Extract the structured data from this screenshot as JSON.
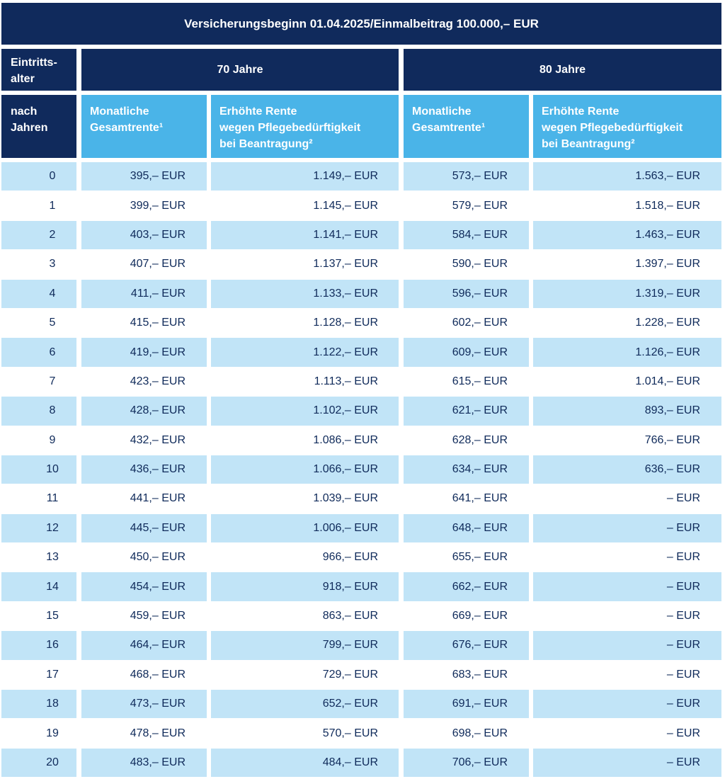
{
  "title": "Versicherungsbeginn 01.04.2025/Einmalbeitrag 100.000,– EUR",
  "header": {
    "entry_age": "Eintritts-\nalter",
    "after_years": "nach\nJahren",
    "group_70": "70 Jahre",
    "group_80": "80 Jahre",
    "monthly": "Monatliche\nGesamtrente¹",
    "care": "Erhöhte Rente\nwegen Pflegebedürftigkeit\nbei Beantragung²"
  },
  "rows": [
    {
      "years": "0",
      "m70": "395,– EUR",
      "p70": "1.149,– EUR",
      "m80": "573,– EUR",
      "p80": "1.563,– EUR"
    },
    {
      "years": "1",
      "m70": "399,– EUR",
      "p70": "1.145,– EUR",
      "m80": "579,– EUR",
      "p80": "1.518,– EUR"
    },
    {
      "years": "2",
      "m70": "403,– EUR",
      "p70": "1.141,– EUR",
      "m80": "584,– EUR",
      "p80": "1.463,– EUR"
    },
    {
      "years": "3",
      "m70": "407,– EUR",
      "p70": "1.137,– EUR",
      "m80": "590,– EUR",
      "p80": "1.397,– EUR"
    },
    {
      "years": "4",
      "m70": "411,– EUR",
      "p70": "1.133,– EUR",
      "m80": "596,– EUR",
      "p80": "1.319,– EUR"
    },
    {
      "years": "5",
      "m70": "415,– EUR",
      "p70": "1.128,– EUR",
      "m80": "602,– EUR",
      "p80": "1.228,– EUR"
    },
    {
      "years": "6",
      "m70": "419,– EUR",
      "p70": "1.122,– EUR",
      "m80": "609,– EUR",
      "p80": "1.126,– EUR"
    },
    {
      "years": "7",
      "m70": "423,– EUR",
      "p70": "1.113,– EUR",
      "m80": "615,– EUR",
      "p80": "1.014,– EUR"
    },
    {
      "years": "8",
      "m70": "428,– EUR",
      "p70": "1.102,– EUR",
      "m80": "621,– EUR",
      "p80": "893,– EUR"
    },
    {
      "years": "9",
      "m70": "432,– EUR",
      "p70": "1.086,– EUR",
      "m80": "628,– EUR",
      "p80": "766,– EUR"
    },
    {
      "years": "10",
      "m70": "436,– EUR",
      "p70": "1.066,– EUR",
      "m80": "634,– EUR",
      "p80": "636,– EUR"
    },
    {
      "years": "11",
      "m70": "441,– EUR",
      "p70": "1.039,– EUR",
      "m80": "641,– EUR",
      "p80": "– EUR"
    },
    {
      "years": "12",
      "m70": "445,– EUR",
      "p70": "1.006,– EUR",
      "m80": "648,– EUR",
      "p80": "– EUR"
    },
    {
      "years": "13",
      "m70": "450,– EUR",
      "p70": "966,– EUR",
      "m80": "655,– EUR",
      "p80": "– EUR"
    },
    {
      "years": "14",
      "m70": "454,– EUR",
      "p70": "918,– EUR",
      "m80": "662,– EUR",
      "p80": "– EUR"
    },
    {
      "years": "15",
      "m70": "459,– EUR",
      "p70": "863,– EUR",
      "m80": "669,– EUR",
      "p80": "– EUR"
    },
    {
      "years": "16",
      "m70": "464,– EUR",
      "p70": "799,– EUR",
      "m80": "676,– EUR",
      "p80": "– EUR"
    },
    {
      "years": "17",
      "m70": "468,– EUR",
      "p70": "729,– EUR",
      "m80": "683,– EUR",
      "p80": "– EUR"
    },
    {
      "years": "18",
      "m70": "473,– EUR",
      "p70": "652,– EUR",
      "m80": "691,– EUR",
      "p80": "– EUR"
    },
    {
      "years": "19",
      "m70": "478,– EUR",
      "p70": "570,– EUR",
      "m80": "698,– EUR",
      "p80": "– EUR"
    },
    {
      "years": "20",
      "m70": "483,– EUR",
      "p70": "484,– EUR",
      "m80": "706,– EUR",
      "p80": "– EUR"
    }
  ],
  "colors": {
    "navy": "#102a5c",
    "sky": "#4ab4e8",
    "row_shade": "#c1e4f7",
    "text": "#0f2a5a"
  }
}
